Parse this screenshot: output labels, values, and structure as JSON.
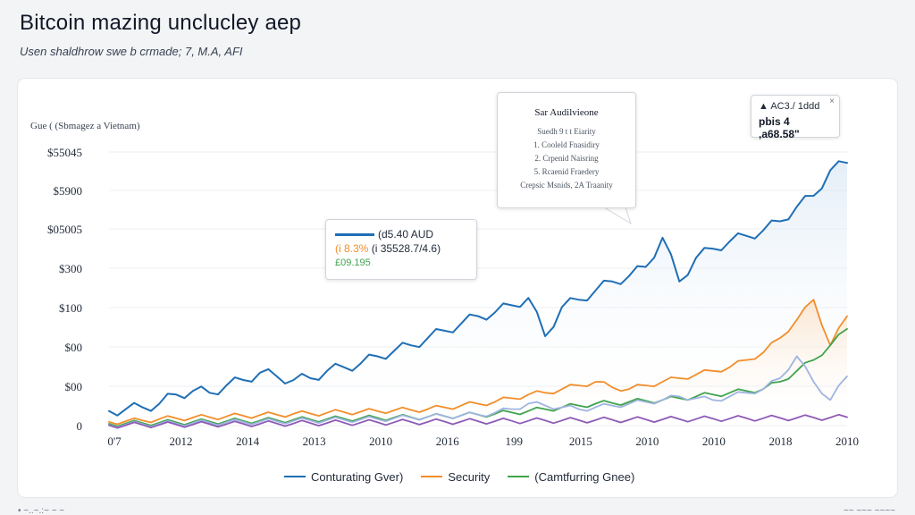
{
  "title": "Bitcoin mazing unclucley aep",
  "subtitle": "Usen shaldhrow swe b crmade; 7, M.A, AFI",
  "chart_data": {
    "type": "line",
    "title": "",
    "ylabel": "Gue ( (Sbmagez a Vietnam)",
    "xlabel": "",
    "y_tick_labels": [
      "$55045",
      "$5900",
      "$05005",
      "$300",
      "$100",
      "$00",
      "$00",
      "0"
    ],
    "x_tick_labels": [
      "0'7",
      "2012",
      "2014",
      "2013",
      "2010",
      "2016",
      "199",
      "2015",
      "2010",
      "2010",
      "2018",
      "2010"
    ],
    "grid": "horizontal",
    "legend_position": "bottom",
    "series": [
      {
        "name": "Conturating Gver)",
        "color": "#1f6fb5",
        "values": [
          0.4,
          0.45,
          0.5,
          0.6,
          0.85,
          0.95,
          0.9,
          1.1,
          1.25,
          1.45,
          1.35,
          1.25,
          1.3,
          1.5,
          1.6,
          1.7,
          1.9,
          2.05,
          2.2,
          2.4,
          2.6,
          2.8,
          3.0,
          3.1,
          3.3,
          3.5,
          2.45,
          3.25,
          3.45,
          3.7,
          3.95,
          4.1,
          4.35,
          5.15,
          3.95,
          4.6,
          4.85,
          5.05,
          5.2,
          5.35,
          5.6,
          6.0,
          6.3,
          7.0,
          7.2
        ]
      },
      {
        "name": "Security",
        "color": "#f28e2b",
        "values": [
          0.1,
          0.12,
          0.14,
          0.18,
          0.2,
          0.22,
          0.23,
          0.25,
          0.27,
          0.29,
          0.3,
          0.32,
          0.33,
          0.35,
          0.37,
          0.38,
          0.4,
          0.42,
          0.43,
          0.45,
          0.5,
          0.55,
          0.6,
          0.65,
          0.75,
          0.85,
          0.9,
          1.0,
          1.1,
          1.2,
          1.05,
          1.0,
          1.1,
          1.2,
          1.3,
          1.4,
          1.5,
          1.6,
          1.8,
          2.0,
          2.4,
          2.9,
          3.45,
          2.2,
          3.0
        ]
      },
      {
        "name": "(Camtfurring Gnee)",
        "color": "#3fa34d",
        "values": [
          0.05,
          0.06,
          0.07,
          0.08,
          0.09,
          0.1,
          0.11,
          0.12,
          0.13,
          0.14,
          0.15,
          0.16,
          0.17,
          0.18,
          0.19,
          0.2,
          0.21,
          0.22,
          0.23,
          0.24,
          0.26,
          0.28,
          0.3,
          0.32,
          0.36,
          0.4,
          0.45,
          0.5,
          0.55,
          0.6,
          0.62,
          0.65,
          0.68,
          0.7,
          0.75,
          0.8,
          0.85,
          0.9,
          0.95,
          1.0,
          1.2,
          1.5,
          1.8,
          2.2,
          2.65
        ]
      },
      {
        "name": "",
        "color": "#9fb4e0",
        "values": [
          0.02,
          0.03,
          0.04,
          0.05,
          0.06,
          0.07,
          0.08,
          0.09,
          0.1,
          0.11,
          0.12,
          0.13,
          0.14,
          0.15,
          0.16,
          0.17,
          0.18,
          0.2,
          0.22,
          0.24,
          0.26,
          0.28,
          0.3,
          0.35,
          0.45,
          0.6,
          0.55,
          0.5,
          0.45,
          0.5,
          0.55,
          0.6,
          0.65,
          0.7,
          0.8,
          0.75,
          0.7,
          0.8,
          0.9,
          1.0,
          1.3,
          1.9,
          1.2,
          0.7,
          1.35
        ]
      },
      {
        "name": "",
        "color": "#8e5bb5",
        "values": [
          0.01,
          0.01,
          0.02,
          0.02,
          0.03,
          0.03,
          0.04,
          0.04,
          0.05,
          0.05,
          0.06,
          0.06,
          0.07,
          0.07,
          0.08,
          0.08,
          0.09,
          0.09,
          0.1,
          0.1,
          0.11,
          0.11,
          0.12,
          0.12,
          0.13,
          0.13,
          0.14,
          0.14,
          0.15,
          0.15,
          0.16,
          0.16,
          0.17,
          0.17,
          0.18,
          0.18,
          0.19,
          0.19,
          0.2,
          0.2,
          0.21,
          0.21,
          0.22,
          0.22,
          0.23
        ]
      }
    ]
  },
  "tooltip_main": {
    "title": "Sar Audilvieone",
    "lines": [
      "Suedh 9 t t Eiarity",
      "1.  Cooleld Fnasidiry",
      "2.  Crpenid Naisring",
      "5.  Rcaenid Fraedery",
      "Crepsic Msnids, 2A Traanity"
    ]
  },
  "tooltip_left": {
    "row1": "(d5.40 AUD",
    "row2_a": "(i 8.3%",
    "row2_b": "(i 35528.7/4.6)",
    "row3": "£09.195",
    "color_a": "#f28e2b",
    "color_b": "#3fa34d"
  },
  "tooltip_right": {
    "row1": "▲ AC3./ 1ddd",
    "row2": "pbis 4 ,a68.58\"",
    "close": "×"
  },
  "legend": [
    {
      "label": "Conturating Gver)",
      "color": "#1f6fb5"
    },
    {
      "label": "Security",
      "color": "#f28e2b"
    },
    {
      "label": "(Camtfurring Gnee)",
      "color": "#3fa34d"
    }
  ],
  "footer_left": "• ~..~.:~ ~ ~",
  "footer_right": "~~ ~~~ ~~~~"
}
